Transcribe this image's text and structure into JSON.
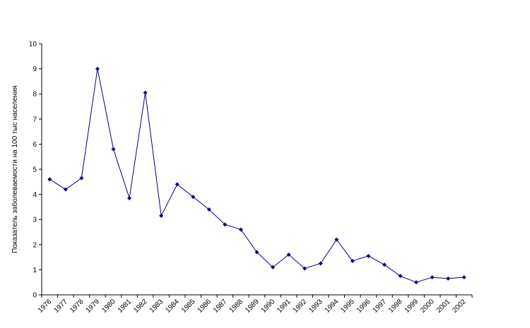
{
  "chart_data": {
    "type": "line",
    "title": "",
    "xlabel": "",
    "ylabel": "Показатель заболеваемости на 100 тыс населения",
    "ylim": [
      0,
      10
    ],
    "yticks": [
      0,
      1,
      2,
      3,
      4,
      5,
      6,
      7,
      8,
      9,
      10
    ],
    "grid": false,
    "legend": "none",
    "x": [
      "1976",
      "1977",
      "1978",
      "1979",
      "1980",
      "1981",
      "1982",
      "1983",
      "1984",
      "1985",
      "1986",
      "1987",
      "1988",
      "1989",
      "1990",
      "1991",
      "1992",
      "1993",
      "1994",
      "1995",
      "1996",
      "1997",
      "1998",
      "1999",
      "2000",
      "2001",
      "2002"
    ],
    "series": [
      {
        "color": "#000080",
        "values": [
          4.6,
          4.2,
          4.65,
          9.0,
          5.8,
          3.85,
          8.05,
          3.15,
          4.4,
          3.9,
          3.4,
          2.8,
          2.6,
          1.7,
          1.1,
          1.6,
          1.05,
          1.25,
          2.2,
          1.35,
          1.55,
          1.2,
          0.75,
          0.5,
          0.7,
          0.65,
          0.7
        ]
      }
    ]
  }
}
